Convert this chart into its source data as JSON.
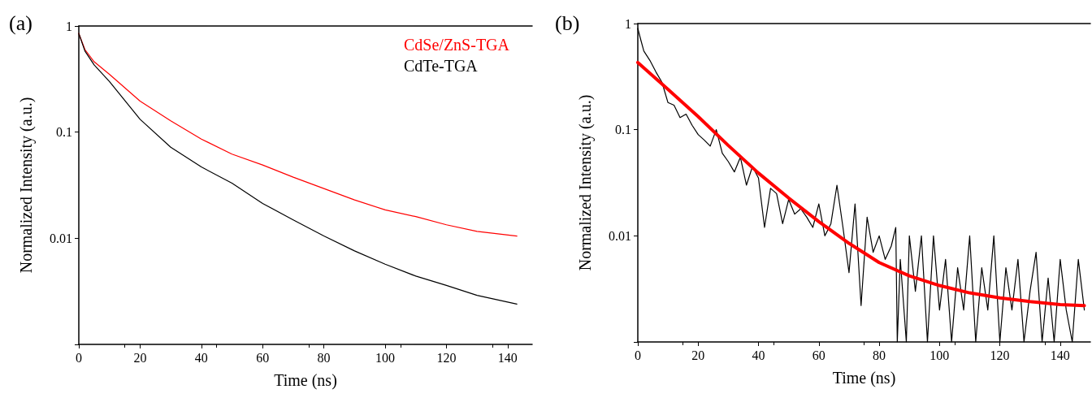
{
  "chart_data": [
    {
      "type": "line",
      "title": "(a)",
      "xlabel": "Time (ns)",
      "ylabel": "Normalized Intensity (a.u.)",
      "log": "y",
      "legend": "top right",
      "grid": false,
      "marker": "none",
      "line_style": "solid",
      "xlim": [
        0,
        148
      ],
      "xticks": [
        0,
        20,
        40,
        60,
        80,
        100,
        120,
        140
      ],
      "ylim": [
        0.001,
        1
      ],
      "yticks": [
        {
          "value": 0.001,
          "label": null
        },
        0.01,
        0.1,
        1
      ],
      "x": [
        0,
        2,
        5,
        10,
        20,
        30,
        40,
        50,
        60,
        70,
        80,
        90,
        100,
        110,
        120,
        130,
        143
      ],
      "series": [
        {
          "name": "CdSe/ZnS-TGA",
          "color": "#ff0000",
          "values": [
            0.85,
            0.6,
            0.46,
            0.35,
            0.196,
            0.128,
            0.086,
            0.062,
            0.049,
            0.0376,
            0.0294,
            0.023,
            0.0185,
            0.016,
            0.0134,
            0.0116,
            0.0105
          ]
        },
        {
          "name": "CdTe-TGA",
          "color": "#000000",
          "values": [
            0.85,
            0.58,
            0.43,
            0.3,
            0.132,
            0.072,
            0.047,
            0.033,
            0.0213,
            0.0149,
            0.0105,
            0.0076,
            0.0057,
            0.0044,
            0.0036,
            0.0029,
            0.0024
          ]
        }
      ]
    },
    {
      "type": "line",
      "title": "(b)",
      "xlabel": "Time (ns)",
      "ylabel": "Normalized Intensity (a.u.)",
      "log": "y",
      "legend": false,
      "grid": false,
      "marker": "none",
      "line_style": "solid",
      "xlim": [
        0,
        150
      ],
      "xticks": [
        0,
        20,
        40,
        60,
        80,
        100,
        120,
        140
      ],
      "ylim": [
        0.001,
        1
      ],
      "yticks": [
        {
          "value": 0.001,
          "label": null
        },
        0.01,
        0.1,
        1
      ],
      "series": [
        {
          "color": "#000000",
          "x": [
            0,
            1,
            2,
            4,
            6,
            8,
            10,
            12,
            14,
            16,
            18,
            20,
            22,
            24,
            26,
            28,
            30,
            32,
            34,
            36,
            38,
            40,
            42,
            44,
            46,
            48,
            50,
            52,
            54,
            56,
            58,
            60,
            62,
            64,
            66,
            68,
            70,
            72,
            74,
            76,
            78,
            80,
            82,
            84,
            85.5,
            86,
            87,
            89,
            90,
            92,
            94,
            96,
            98,
            100,
            102,
            104,
            106,
            108,
            110,
            112,
            114,
            116,
            118,
            120,
            122,
            124,
            126,
            128,
            130,
            132,
            134,
            136,
            138,
            140,
            142,
            144,
            146,
            148
          ],
          "values": [
            0.9,
            0.7,
            0.55,
            0.45,
            0.35,
            0.28,
            0.18,
            0.17,
            0.13,
            0.14,
            0.11,
            0.09,
            0.08,
            0.07,
            0.1,
            0.06,
            0.05,
            0.04,
            0.055,
            0.03,
            0.045,
            0.035,
            0.012,
            0.028,
            0.025,
            0.013,
            0.022,
            0.016,
            0.018,
            0.015,
            0.012,
            0.02,
            0.01,
            0.013,
            0.03,
            0.012,
            0.0045,
            0.02,
            0.0022,
            0.015,
            0.007,
            0.01,
            0.006,
            0.008,
            0.012,
            0.001,
            0.006,
            0.001,
            0.01,
            0.003,
            0.01,
            0.001,
            0.01,
            0.002,
            0.006,
            0.001,
            0.005,
            0.002,
            0.01,
            0.001,
            0.005,
            0.002,
            0.01,
            0.001,
            0.005,
            0.002,
            0.006,
            0.001,
            0.003,
            0.007,
            0.001,
            0.004,
            0.001,
            0.006,
            0.002,
            0.001,
            0.006,
            0.002
          ]
        },
        {
          "color": "#ff0000",
          "x": [
            0,
            10,
            20,
            30,
            40,
            50,
            60,
            70,
            80,
            90,
            100,
            110,
            120,
            130,
            140,
            148
          ],
          "values": [
            0.43,
            0.24,
            0.133,
            0.071,
            0.039,
            0.0227,
            0.0136,
            0.0085,
            0.0056,
            0.0042,
            0.0034,
            0.0029,
            0.0026,
            0.0024,
            0.00225,
            0.0022
          ]
        }
      ]
    }
  ]
}
